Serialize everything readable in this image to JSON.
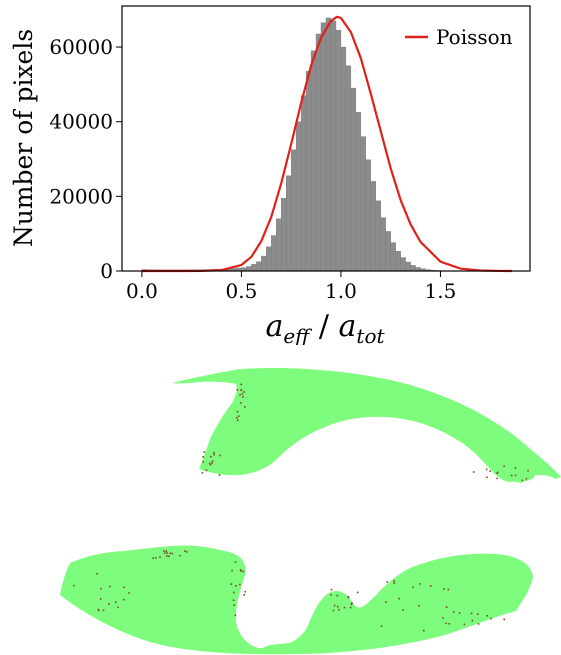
{
  "chart_data": {
    "type": "bar",
    "xlabel": "a_eff / a_tot",
    "xlabel_main_1": "a",
    "xlabel_sub_1": "eff",
    "xlabel_sep": " / ",
    "xlabel_main_2": "a",
    "xlabel_sub_2": "tot",
    "ylabel": "Number of pixels",
    "xlim": [
      -0.1,
      1.95
    ],
    "ylim": [
      0,
      71000
    ],
    "xticks": [
      0.0,
      0.5,
      1.0,
      1.5
    ],
    "xtick_labels": [
      "0.0",
      "0.5",
      "1.0",
      "1.5"
    ],
    "yticks": [
      0,
      20000,
      40000,
      60000
    ],
    "ytick_labels": [
      "0",
      "20000",
      "40000",
      "60000"
    ],
    "bin_width": 0.025,
    "bins_start": 0.0,
    "values": [
      400,
      350,
      320,
      300,
      300,
      300,
      300,
      300,
      300,
      300,
      320,
      340,
      360,
      400,
      450,
      500,
      550,
      600,
      700,
      800,
      900,
      1200,
      1800,
      2500,
      4000,
      6500,
      9500,
      14000,
      19500,
      25500,
      32500,
      40000,
      47000,
      53500,
      59000,
      63500,
      66500,
      67800,
      67000,
      64500,
      60000,
      55000,
      49000,
      42500,
      36000,
      29800,
      24000,
      18800,
      14300,
      10600,
      7600,
      5300,
      3600,
      2400,
      1500,
      950,
      600,
      380,
      230,
      140,
      90,
      50,
      30,
      20
    ],
    "series": [
      {
        "name": "Poisson",
        "color": "#e0201b",
        "x": [
          0.0,
          0.1,
          0.2,
          0.3,
          0.4,
          0.5,
          0.55,
          0.6,
          0.65,
          0.7,
          0.75,
          0.8,
          0.85,
          0.9,
          0.95,
          0.98,
          1.0,
          1.05,
          1.1,
          1.15,
          1.2,
          1.25,
          1.3,
          1.35,
          1.4,
          1.5,
          1.6,
          1.7,
          1.8,
          1.86
        ],
        "y": [
          0,
          0,
          0,
          20,
          250,
          1600,
          3800,
          8000,
          14500,
          23500,
          34000,
          45000,
          55000,
          62500,
          67000,
          68100,
          67800,
          64000,
          57000,
          47500,
          37500,
          27500,
          19000,
          12500,
          7800,
          2500,
          650,
          130,
          20,
          5
        ]
      }
    ],
    "legend_position": "top-right",
    "bar_color": "#8c8c8c",
    "grid": false
  },
  "map": {
    "fill_color": "#7dfc7d",
    "speckle_color": "#7a4a2a"
  }
}
